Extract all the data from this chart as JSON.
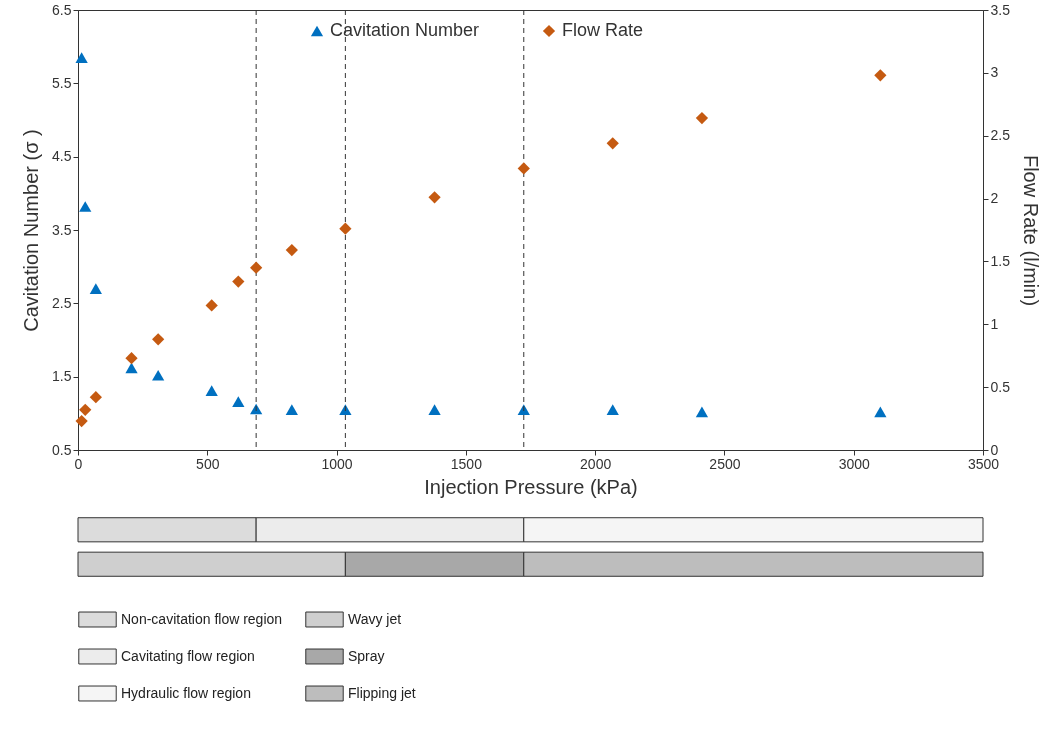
{
  "chart_data": [
    {
      "type": "scatter",
      "xlabel": "Injection Pressure (kPa)",
      "ylabel": "Cavitation Number (σ )",
      "y2label": "Flow Rate (l/min)",
      "x": [
        14,
        28,
        69,
        207,
        310,
        517,
        620,
        689,
        827,
        1034,
        1379,
        1724,
        2068,
        2413,
        3103
      ],
      "series": [
        {
          "name": "Cavitation Number",
          "color": "#0070c0",
          "marker": "triangle",
          "values": [
            5.85,
            3.82,
            2.7,
            1.62,
            1.52,
            1.31,
            1.16,
            1.06,
            1.05,
            1.05,
            1.05,
            1.05,
            1.05,
            1.02,
            1.02
          ]
        },
        {
          "name": "Flow Rate",
          "color": "#c55a11",
          "marker": "diamond",
          "axis": "y2",
          "values": [
            0.23,
            0.32,
            0.42,
            0.73,
            0.88,
            1.15,
            1.34,
            1.45,
            1.59,
            1.76,
            2.01,
            2.24,
            2.44,
            2.64,
            2.98
          ]
        }
      ],
      "xlim": [
        0,
        3500
      ],
      "xticks": [
        0,
        500,
        1000,
        1500,
        2000,
        2500,
        3000,
        3500
      ],
      "ylim": [
        0.5,
        6.5
      ],
      "yticks": [
        0.5,
        1.5,
        2.5,
        3.5,
        4.5,
        5.5,
        6.5
      ],
      "y2lim": [
        0,
        3.5
      ],
      "y2ticks": [
        0,
        0.5,
        1,
        1.5,
        2,
        2.5,
        3,
        3.5
      ],
      "ref_lines": [
        {
          "axis": "x",
          "value": 689,
          "line_style": "dashed"
        },
        {
          "axis": "x",
          "value": 1034,
          "line_style": "dashed"
        },
        {
          "axis": "x",
          "value": 1724,
          "line_style": "dashed"
        }
      ],
      "legend": "top"
    },
    {
      "type": "bar",
      "orientation": "horizontal",
      "stacked": true,
      "categories": [
        null,
        null
      ],
      "series": [
        {
          "name": "Non-cavitation flow region",
          "color": "#dcdcdc",
          "values": [
            689,
            null
          ]
        },
        {
          "name": "Cavitating flow region",
          "color": "#ececec",
          "values": [
            1035,
            null
          ]
        },
        {
          "name": "Hydraulic flow region",
          "color": "#f5f5f5",
          "values": [
            1776,
            null
          ]
        },
        {
          "name": "Wavy jet",
          "color": "#cfcfcf",
          "values": [
            null,
            1034
          ]
        },
        {
          "name": "Spray",
          "color": "#a8a8a8",
          "values": [
            null,
            690
          ]
        },
        {
          "name": "Flipping jet",
          "color": "#bdbdbd",
          "values": [
            null,
            1776
          ]
        }
      ],
      "xlim": [
        0,
        3500
      ],
      "tick_labels": false,
      "legend": "bottom"
    }
  ]
}
